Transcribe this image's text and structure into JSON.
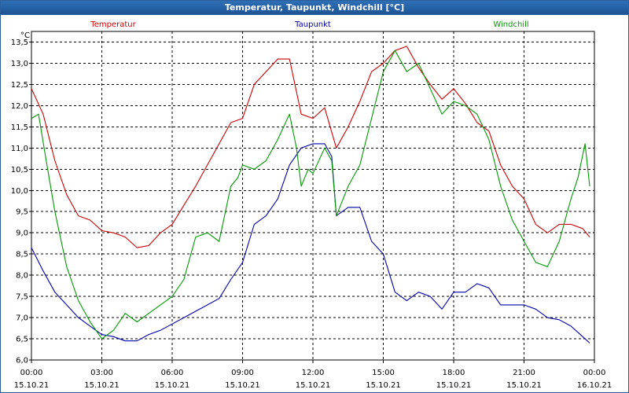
{
  "window": {
    "title": "Temperatur, Taupunkt, Windchill [°C]"
  },
  "chart_data": {
    "type": "line",
    "title": "Temperatur, Taupunkt, Windchill [°C]",
    "ylabel": "°C",
    "ylim": [
      6.0,
      13.75
    ],
    "xlim": [
      0,
      24
    ],
    "grid": true,
    "y_ticks": [
      "6,0",
      "6,5",
      "7,0",
      "7,5",
      "8,0",
      "8,5",
      "9,0",
      "9,5",
      "10,0",
      "10,5",
      "11,0",
      "11,5",
      "12,0",
      "12,5",
      "13,0",
      "13,5"
    ],
    "x_ticks": [
      {
        "time": "00:00",
        "date": "15.10.21"
      },
      {
        "time": "03:00",
        "date": "15.10.21"
      },
      {
        "time": "06:00",
        "date": "15.10.21"
      },
      {
        "time": "09:00",
        "date": "15.10.21"
      },
      {
        "time": "12:00",
        "date": "15.10.21"
      },
      {
        "time": "15:00",
        "date": "15.10.21"
      },
      {
        "time": "18:00",
        "date": "15.10.21"
      },
      {
        "time": "21:00",
        "date": "15.10.21"
      },
      {
        "time": "00:00",
        "date": "16.10.21"
      }
    ],
    "series": [
      {
        "name": "Temperatur",
        "color": "#cc0000",
        "x": [
          0,
          0.5,
          1,
          1.5,
          2,
          2.5,
          3,
          3.5,
          4,
          4.5,
          5,
          5.5,
          6,
          7,
          8,
          8.5,
          9,
          9.5,
          10,
          10.5,
          11,
          11.5,
          12,
          12.5,
          13,
          13.5,
          14,
          14.5,
          15,
          15.5,
          16,
          16.5,
          17,
          17.5,
          18,
          18.5,
          19,
          19.5,
          20,
          20.5,
          21,
          21.5,
          22,
          22.5,
          23,
          23.5,
          23.8
        ],
        "values": [
          12.4,
          11.8,
          10.7,
          9.9,
          9.4,
          9.3,
          9.05,
          9.0,
          8.9,
          8.65,
          8.7,
          9.0,
          9.2,
          10.1,
          11.1,
          11.6,
          11.7,
          12.5,
          12.8,
          13.1,
          13.1,
          11.8,
          11.7,
          11.95,
          11.0,
          11.5,
          12.1,
          12.8,
          13.0,
          13.3,
          13.4,
          12.9,
          12.5,
          12.15,
          12.4,
          12.05,
          11.6,
          11.4,
          10.6,
          10.1,
          9.8,
          9.2,
          9.0,
          9.2,
          9.2,
          9.1,
          8.9
        ]
      },
      {
        "name": "Taupunkt",
        "color": "#0000aa",
        "x": [
          0,
          0.5,
          1,
          1.5,
          2,
          2.5,
          3,
          3.5,
          4,
          4.5,
          5,
          5.5,
          6,
          6.5,
          7,
          7.5,
          8,
          8.5,
          9,
          9.5,
          10,
          10.5,
          11,
          11.5,
          12,
          12.5,
          12.8,
          13,
          13.5,
          14,
          14.5,
          15,
          15.5,
          16,
          16.5,
          17,
          17.5,
          18,
          18.5,
          19,
          19.5,
          20,
          20.5,
          21,
          21.5,
          22,
          22.5,
          23,
          23.5,
          23.8
        ],
        "values": [
          8.65,
          8.1,
          7.6,
          7.3,
          7.0,
          6.8,
          6.6,
          6.55,
          6.45,
          6.45,
          6.6,
          6.7,
          6.85,
          7.0,
          7.15,
          7.3,
          7.45,
          7.9,
          8.3,
          9.2,
          9.4,
          9.8,
          10.6,
          11.0,
          11.1,
          11.1,
          10.8,
          9.4,
          9.6,
          9.6,
          8.8,
          8.5,
          7.6,
          7.4,
          7.6,
          7.5,
          7.2,
          7.6,
          7.6,
          7.8,
          7.7,
          7.3,
          7.3,
          7.3,
          7.2,
          7.0,
          6.95,
          6.8,
          6.55,
          6.4
        ]
      },
      {
        "name": "Windchill",
        "color": "#009900",
        "x": [
          0,
          0.3,
          0.6,
          1,
          1.5,
          2,
          2.5,
          3,
          3.5,
          4,
          4.5,
          5,
          5.5,
          6,
          6.5,
          7,
          7.5,
          8,
          8.5,
          8.8,
          9,
          9.5,
          10,
          10.5,
          11,
          11.3,
          11.5,
          11.8,
          12,
          12.5,
          12.8,
          13,
          13.5,
          14,
          14.5,
          15,
          15.5,
          16,
          16.5,
          17,
          17.5,
          18,
          18.5,
          19,
          19.5,
          20,
          20.5,
          21,
          21.5,
          22,
          22.5,
          23,
          23.3,
          23.6,
          23.8
        ],
        "values": [
          11.7,
          11.8,
          10.8,
          9.5,
          8.2,
          7.4,
          6.9,
          6.5,
          6.7,
          7.1,
          6.9,
          7.1,
          7.3,
          7.5,
          7.9,
          8.9,
          9.0,
          8.8,
          10.1,
          10.3,
          10.6,
          10.5,
          10.7,
          11.2,
          11.8,
          11.0,
          10.1,
          10.5,
          10.4,
          11.0,
          10.7,
          9.4,
          10.1,
          10.6,
          11.7,
          12.8,
          13.3,
          12.8,
          13.0,
          12.4,
          11.8,
          12.1,
          12.0,
          11.8,
          11.2,
          10.1,
          9.3,
          8.8,
          8.3,
          8.2,
          8.8,
          9.8,
          10.3,
          11.1,
          10.1
        ]
      }
    ]
  }
}
